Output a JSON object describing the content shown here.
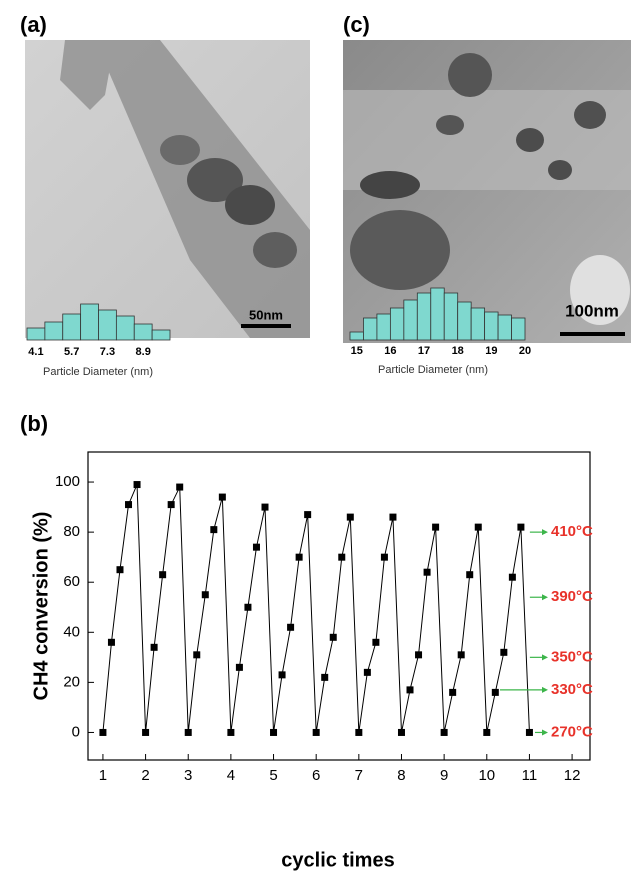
{
  "chart_data": [
    {
      "type": "histogram",
      "title": "(a)",
      "xlabel": "Particle Diameter (nm)",
      "scale_bar": "50nm",
      "color": "#7fd8cf",
      "bins": [
        3.7,
        4.5,
        5.3,
        6.1,
        6.9,
        7.7,
        8.5,
        9.3,
        10.1
      ],
      "values": [
        12,
        18,
        26,
        36,
        30,
        24,
        16,
        10
      ],
      "xlim": [
        3.7,
        10.1
      ],
      "xticks": [
        4.1,
        5.7,
        7.3,
        8.9
      ]
    },
    {
      "type": "line",
      "title": "(b)",
      "xlabel": "cyclic times",
      "ylabel": "CH4 conversion (%)",
      "x": [
        1,
        1.2,
        1.4,
        1.6,
        1.8,
        2,
        2.2,
        2.4,
        2.6,
        2.8,
        3,
        3.2,
        3.4,
        3.6,
        3.8,
        4,
        4.2,
        4.4,
        4.6,
        4.8,
        5,
        5.2,
        5.4,
        5.6,
        5.8,
        6,
        6.2,
        6.4,
        6.6,
        6.8,
        7,
        7.2,
        7.4,
        7.6,
        7.8,
        8,
        8.2,
        8.4,
        8.6,
        8.8,
        9,
        9.2,
        9.4,
        9.6,
        9.8,
        10,
        10.2,
        10.4,
        10.6,
        10.8,
        11
      ],
      "series": [
        {
          "color": "#000000",
          "values": [
            0,
            36,
            65,
            91,
            99,
            0,
            34,
            63,
            91,
            98,
            0,
            31,
            55,
            81,
            94,
            0,
            26,
            50,
            74,
            90,
            0,
            23,
            42,
            70,
            87,
            0,
            22,
            38,
            70,
            86,
            0,
            24,
            36,
            70,
            86,
            0,
            17,
            31,
            64,
            82,
            0,
            16,
            31,
            63,
            82,
            0,
            16,
            32,
            62,
            82,
            0
          ]
        }
      ],
      "xlim": [
        0.65,
        12.42
      ],
      "xticks": [
        1,
        2,
        3,
        4,
        5,
        6,
        7,
        8,
        9,
        10,
        11,
        12
      ],
      "ylim": [
        -11,
        112
      ],
      "yticks": [
        0,
        20,
        40,
        60,
        80,
        100
      ],
      "annotations": [
        {
          "text": "410°C",
          "x": 11.01,
          "y": 80
        },
        {
          "text": "390°C",
          "x": 11.01,
          "y": 54
        },
        {
          "text": "350°C",
          "x": 11.01,
          "y": 30
        },
        {
          "text": "330°C",
          "x": 10.31,
          "y": 17
        },
        {
          "text": "270°C",
          "x": 11.13,
          "y": 0
        }
      ],
      "annotation_color": "#e8322a",
      "arrow_color": "#3cb54a"
    },
    {
      "type": "histogram",
      "title": "(c)",
      "xlabel": "Particle Diameter (nm)",
      "scale_bar": "100nm",
      "color": "#7fd8cf",
      "bins": [
        14.8,
        15.2,
        15.6,
        16,
        16.4,
        16.8,
        17.2,
        17.6,
        18,
        18.4,
        18.8,
        19.2,
        19.6,
        20
      ],
      "values": [
        8,
        22,
        26,
        32,
        40,
        47,
        52,
        47,
        38,
        32,
        28,
        25,
        22
      ],
      "xlim": [
        14.8,
        20
      ],
      "xticks": [
        15,
        16,
        17,
        18,
        19,
        20
      ]
    }
  ]
}
